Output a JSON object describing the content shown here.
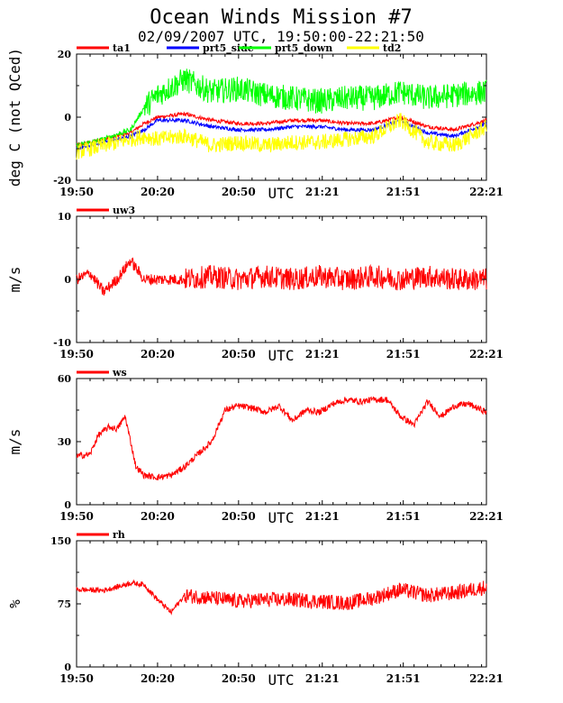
{
  "title": "Ocean Winds Mission #7",
  "subtitle": "02/09/2007  UTC, 19:50:00-22:21:50",
  "time_ticks": [
    "19:50",
    "20:20",
    "20:50",
    "21:21",
    "21:51",
    "22:21"
  ],
  "time_tick_minutes": [
    0,
    30,
    60,
    91,
    121,
    151.8
  ],
  "utc_label": "UTC",
  "colors": {
    "red": "#ff0000",
    "blue": "#0000ff",
    "green": "#00ff00",
    "yellow": "#ffff00",
    "axis": "#000000"
  },
  "chart_data": [
    {
      "type": "line",
      "ylabel": "deg C (not QCed)",
      "xlabel": "UTC",
      "ylim": [
        -20,
        20
      ],
      "yticks": [
        "20",
        "0",
        "-20"
      ],
      "ytick_values": [
        20,
        0,
        -20
      ],
      "grid": false,
      "legend_placement": "top",
      "series": [
        {
          "name": "ta1",
          "color": "#ff0000",
          "x": [
            0,
            10,
            20,
            25,
            30,
            40,
            50,
            60,
            70,
            80,
            90,
            100,
            110,
            120,
            130,
            140,
            151.8
          ],
          "y": [
            -9,
            -7,
            -5,
            -2,
            0,
            1,
            -1,
            -2,
            -2,
            -1,
            -1,
            -2,
            -2,
            0,
            -3,
            -4,
            -1
          ]
        },
        {
          "name": "prt5_side",
          "color": "#0000ff",
          "x": [
            0,
            10,
            20,
            25,
            30,
            40,
            50,
            60,
            70,
            80,
            90,
            100,
            110,
            120,
            130,
            140,
            151.8
          ],
          "y": [
            -10,
            -8,
            -6,
            -4,
            -1,
            -1,
            -3,
            -4,
            -4,
            -3,
            -3,
            -4,
            -4,
            -1,
            -5,
            -6,
            -2
          ]
        },
        {
          "name": "prt5_down",
          "color": "#00ff00",
          "x": [
            0,
            10,
            20,
            25,
            30,
            40,
            50,
            60,
            70,
            80,
            90,
            100,
            110,
            120,
            130,
            140,
            151.8
          ],
          "y": [
            -9,
            -7,
            -4,
            3,
            7,
            12,
            8,
            9,
            7,
            6,
            5,
            6,
            6,
            8,
            6,
            7,
            8
          ]
        },
        {
          "name": "td2",
          "color": "#ffff00",
          "x": [
            0,
            10,
            20,
            25,
            30,
            40,
            50,
            60,
            70,
            80,
            90,
            100,
            110,
            120,
            130,
            140,
            151.8
          ],
          "y": [
            -11,
            -9,
            -7,
            -6,
            -7,
            -6,
            -9,
            -8,
            -9,
            -8,
            -8,
            -7,
            -6,
            -1,
            -8,
            -9,
            -3
          ]
        }
      ]
    },
    {
      "type": "line",
      "ylabel": "m/s",
      "xlabel": "UTC",
      "ylim": [
        -10,
        10
      ],
      "yticks": [
        "10",
        "0",
        "-10"
      ],
      "ytick_values": [
        10,
        0,
        -10
      ],
      "grid": false,
      "legend_placement": "top",
      "series": [
        {
          "name": "uw3",
          "color": "#ff0000",
          "x": [
            0,
            5,
            10,
            15,
            20,
            25,
            30,
            35,
            40,
            50,
            60,
            70,
            80,
            90,
            100,
            110,
            120,
            130,
            140,
            151.8
          ],
          "y": [
            0,
            1,
            -2,
            0,
            3,
            0,
            0,
            0,
            0,
            0.5,
            0,
            0.5,
            0,
            0.5,
            0,
            0.5,
            0,
            0.5,
            0,
            0
          ]
        }
      ]
    },
    {
      "type": "line",
      "ylabel": "m/s",
      "xlabel": "UTC",
      "ylim": [
        0,
        60
      ],
      "yticks": [
        "60",
        "30",
        "0"
      ],
      "ytick_values": [
        60,
        30,
        0
      ],
      "grid": false,
      "legend_placement": "top",
      "series": [
        {
          "name": "ws",
          "color": "#ff0000",
          "x": [
            0,
            5,
            8,
            12,
            15,
            18,
            22,
            25,
            30,
            35,
            40,
            45,
            50,
            55,
            60,
            65,
            70,
            75,
            80,
            85,
            90,
            95,
            100,
            105,
            110,
            115,
            120,
            125,
            130,
            135,
            140,
            145,
            151.8
          ],
          "y": [
            23,
            24,
            33,
            37,
            36,
            42,
            18,
            14,
            13,
            14,
            18,
            24,
            30,
            45,
            47,
            46,
            44,
            47,
            40,
            45,
            44,
            48,
            50,
            49,
            50,
            50,
            42,
            38,
            49,
            42,
            47,
            48,
            44
          ]
        }
      ]
    },
    {
      "type": "line",
      "ylabel": "%",
      "xlabel": "UTC",
      "ylim": [
        0,
        150
      ],
      "yticks": [
        "150",
        "75",
        "0"
      ],
      "ytick_values": [
        150,
        75,
        0
      ],
      "grid": false,
      "legend_placement": "top",
      "series": [
        {
          "name": "rh",
          "color": "#ff0000",
          "x": [
            0,
            10,
            15,
            20,
            25,
            30,
            35,
            40,
            50,
            60,
            70,
            80,
            90,
            100,
            110,
            120,
            130,
            140,
            151.8
          ],
          "y": [
            92,
            91,
            95,
            100,
            98,
            80,
            65,
            85,
            82,
            78,
            80,
            80,
            78,
            76,
            82,
            92,
            85,
            88,
            95
          ]
        }
      ]
    }
  ]
}
